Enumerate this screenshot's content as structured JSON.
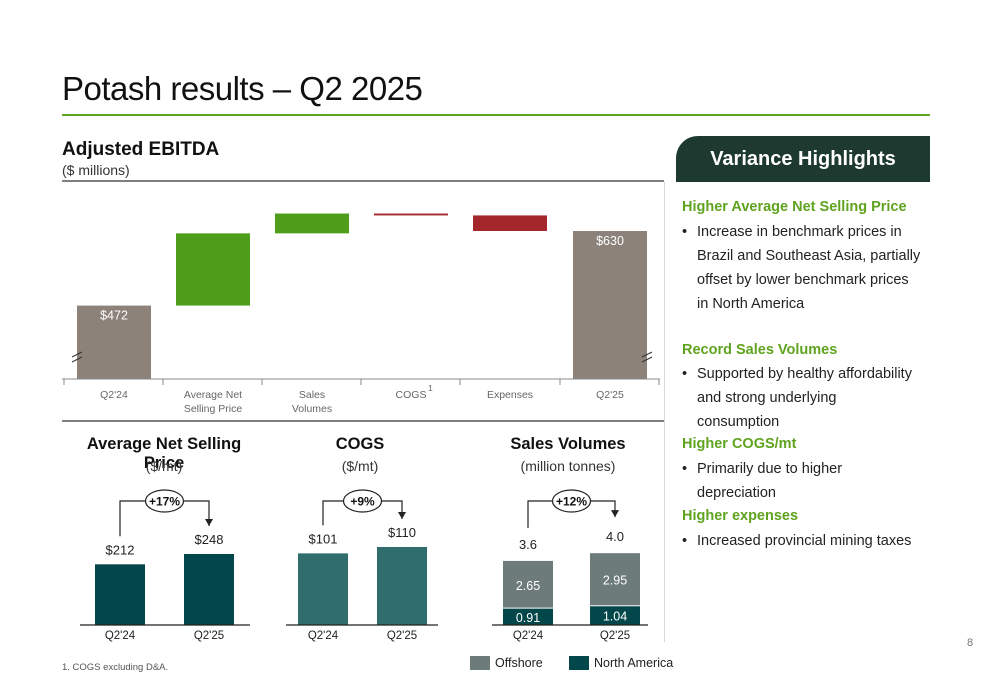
{
  "page": {
    "title": "Potash results – Q2 2025",
    "page_number": "8"
  },
  "ebitda": {
    "title": "Adjusted EBITDA",
    "subtitle": "($ millions)"
  },
  "small_charts": {
    "nsp": {
      "title": "Average Net Selling Price",
      "subtitle": "($/mt)",
      "change": "+17%"
    },
    "cogs": {
      "title": "COGS",
      "subtitle": "($/mt)",
      "change": "+9%"
    },
    "volumes": {
      "title": "Sales Volumes",
      "subtitle": "(million tonnes)",
      "change": "+12%"
    }
  },
  "legend": {
    "offshore": "Offshore",
    "north_america": "North America"
  },
  "highlights": {
    "header": "Variance Highlights",
    "sections": [
      {
        "title": "Higher Average Net Selling Price",
        "bullet": "Increase in benchmark prices in Brazil and Southeast Asia, partially offset by lower benchmark prices in North America"
      },
      {
        "title": "Record Sales Volumes",
        "bullet": "Supported by healthy affordability and strong underlying consumption"
      },
      {
        "title": "Higher COGS/mt",
        "bullet": "Primarily due to higher depreciation"
      },
      {
        "title": "Higher expenses",
        "bullet": "Increased provincial mining taxes"
      }
    ]
  },
  "footnote": "1.     COGS excluding D&A.",
  "colors": {
    "brand_green": "#5fa31f",
    "bar_green": "#4e9e1b",
    "bar_red": "#a3272b",
    "bar_grey": "#8c8279",
    "dark_teal": "#04474a",
    "mid_teal": "#2f6e6c",
    "offshore_grey": "#6d7b7b",
    "header_dark": "#1e3a30"
  },
  "chart_data": [
    {
      "type": "waterfall",
      "title": "Adjusted EBITDA",
      "subtitle": "($ millions)",
      "categories": [
        {
          "label": [
            "Q2'24"
          ],
          "sup": ""
        },
        {
          "label": [
            "Average Net",
            "Selling Price"
          ],
          "sup": ""
        },
        {
          "label": [
            "Sales",
            "Volumes"
          ],
          "sup": ""
        },
        {
          "label": [
            "COGS"
          ],
          "sup": "1"
        },
        {
          "label": [
            "Expenses"
          ],
          "sup": ""
        },
        {
          "label": [
            "Q2'25"
          ],
          "sup": ""
        }
      ],
      "start": {
        "value": 472,
        "label": "$472"
      },
      "steps": [
        {
          "category": "Average Net Selling Price",
          "delta": 153,
          "sign": "increase"
        },
        {
          "category": "Sales Volumes",
          "delta": 42,
          "sign": "increase"
        },
        {
          "category": "COGS",
          "delta": -4,
          "sign": "decrease"
        },
        {
          "category": "Expenses",
          "delta": -33,
          "sign": "decrease"
        }
      ],
      "end": {
        "value": 630,
        "label": "$630"
      },
      "axis_break": true
    },
    {
      "type": "bar",
      "title": "Average Net Selling Price",
      "categories": [
        "Q2'24",
        "Q2'25"
      ],
      "values": [
        212,
        248
      ],
      "labels": [
        "$212",
        "$248"
      ],
      "change": "+17%"
    },
    {
      "type": "bar",
      "title": "COGS",
      "categories": [
        "Q2'24",
        "Q2'25"
      ],
      "values": [
        101,
        110
      ],
      "labels": [
        "$101",
        "$110"
      ],
      "change": "+9%"
    },
    {
      "type": "stacked_bar",
      "title": "Sales Volumes",
      "categories": [
        "Q2'24",
        "Q2'25"
      ],
      "series": [
        {
          "name": "North America",
          "values": [
            0.91,
            1.04
          ],
          "labels": [
            "0.91",
            "1.04"
          ]
        },
        {
          "name": "Offshore",
          "values": [
            2.65,
            2.95
          ],
          "labels": [
            "2.65",
            "2.95"
          ]
        }
      ],
      "totals": [
        "3.6",
        "4.0"
      ],
      "change": "+12%"
    }
  ]
}
